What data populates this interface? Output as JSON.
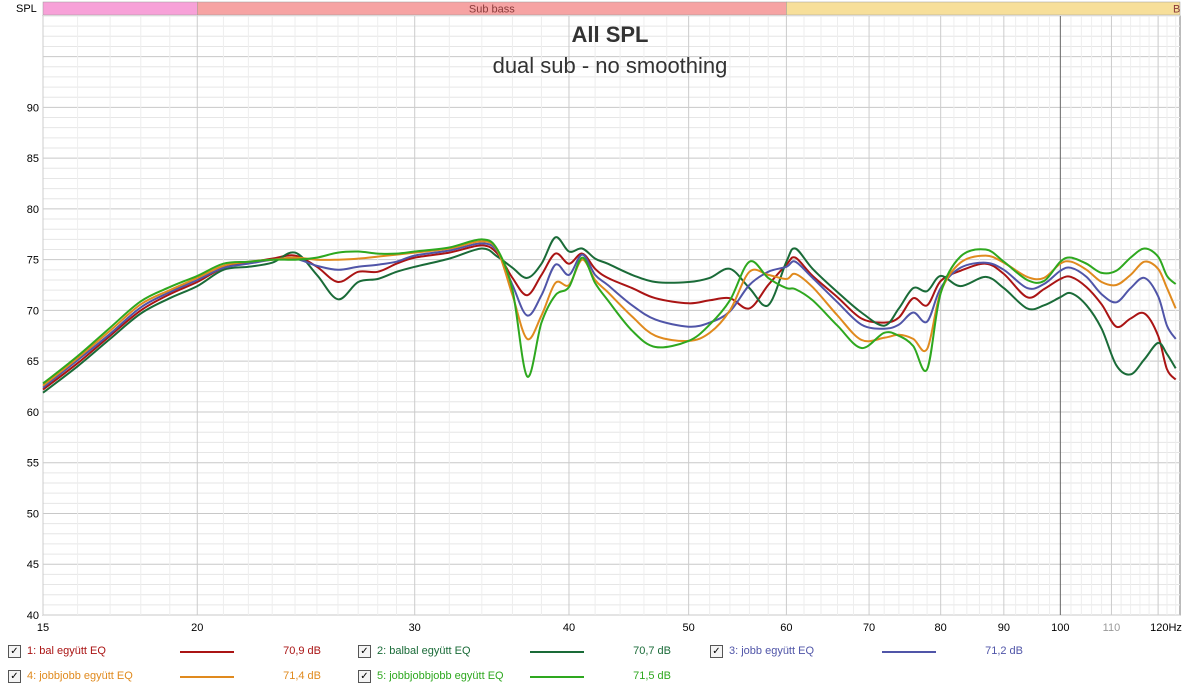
{
  "chart_data": {
    "type": "line",
    "title": "All SPL",
    "subtitle": "dual sub - no smoothing",
    "ylabel": "SPL",
    "x_unit": "Hz",
    "x_scale": "log",
    "xlim": [
      15,
      125
    ],
    "ylim": [
      40,
      99
    ],
    "x_ticks": [
      15,
      20,
      30,
      40,
      50,
      60,
      70,
      80,
      90,
      100,
      110,
      120
    ],
    "x_tick_labels": [
      "15",
      "20",
      "30",
      "40",
      "50",
      "60",
      "70",
      "80",
      "90",
      "100",
      "110",
      "120Hz"
    ],
    "minor_tick_labels": [
      "110"
    ],
    "y_ticks": [
      40,
      45,
      50,
      55,
      60,
      65,
      70,
      75,
      80,
      85,
      90
    ],
    "grid": true,
    "bands": [
      {
        "label": "",
        "from": 15,
        "to": 20,
        "color": "#f7a1d8"
      },
      {
        "label": "Sub bass",
        "from": 20,
        "to": 60,
        "color": "#f6a3a3"
      },
      {
        "label": "B",
        "from": 60,
        "to": 125,
        "color": "#f7df9a"
      }
    ],
    "series": [
      {
        "name": "1: bal együtt EQ",
        "color": "#aa1414",
        "value_label": "70,9 dB",
        "points": [
          [
            15,
            62.2
          ],
          [
            16,
            64.8
          ],
          [
            17,
            67.5
          ],
          [
            18,
            70
          ],
          [
            19,
            71.6
          ],
          [
            20,
            72.8
          ],
          [
            21,
            74.2
          ],
          [
            22,
            74.7
          ],
          [
            23,
            75.1
          ],
          [
            24,
            75.4
          ],
          [
            25,
            74.3
          ],
          [
            26,
            72.8
          ],
          [
            27,
            73.8
          ],
          [
            28,
            73.8
          ],
          [
            29,
            74.6
          ],
          [
            30,
            75.2
          ],
          [
            32,
            75.7
          ],
          [
            34,
            76.4
          ],
          [
            35,
            75.6
          ],
          [
            36,
            73.2
          ],
          [
            37,
            71.5
          ],
          [
            38,
            73.5
          ],
          [
            39,
            75.6
          ],
          [
            40,
            74.6
          ],
          [
            41,
            75.6
          ],
          [
            42,
            74.1
          ],
          [
            43,
            73.2
          ],
          [
            45,
            72.2
          ],
          [
            47,
            71.2
          ],
          [
            50,
            70.7
          ],
          [
            52,
            71
          ],
          [
            54,
            71.2
          ],
          [
            56,
            70.2
          ],
          [
            58,
            72.5
          ],
          [
            60,
            74.5
          ],
          [
            61,
            75.2
          ],
          [
            63,
            73.4
          ],
          [
            66,
            71.3
          ],
          [
            69,
            69.2
          ],
          [
            72,
            68.8
          ],
          [
            74,
            69.3
          ],
          [
            76,
            71.2
          ],
          [
            78,
            70.5
          ],
          [
            80,
            72.9
          ],
          [
            83,
            73.9
          ],
          [
            87,
            74.6
          ],
          [
            90,
            73.6
          ],
          [
            94,
            71.3
          ],
          [
            97,
            72.1
          ],
          [
            100,
            73.1
          ],
          [
            102,
            73.3
          ],
          [
            105,
            72.3
          ],
          [
            108,
            70.6
          ],
          [
            111,
            68.4
          ],
          [
            114,
            69.2
          ],
          [
            117,
            69.7
          ],
          [
            120,
            67.5
          ],
          [
            122,
            64.2
          ],
          [
            124,
            63.2
          ]
        ]
      },
      {
        "name": "2: balbal együtt EQ",
        "color": "#1a6b38",
        "value_label": "70,7 dB",
        "points": [
          [
            15,
            61.9
          ],
          [
            16,
            64.5
          ],
          [
            17,
            67.2
          ],
          [
            18,
            69.7
          ],
          [
            19,
            71.2
          ],
          [
            20,
            72.4
          ],
          [
            21,
            74
          ],
          [
            22,
            74.3
          ],
          [
            23,
            74.7
          ],
          [
            24,
            75.7
          ],
          [
            25,
            73.5
          ],
          [
            26,
            71.1
          ],
          [
            27,
            72.8
          ],
          [
            28,
            73.1
          ],
          [
            29,
            73.8
          ],
          [
            30,
            74.3
          ],
          [
            32,
            75.1
          ],
          [
            34,
            76.1
          ],
          [
            35,
            75.3
          ],
          [
            36,
            74.2
          ],
          [
            37,
            73.2
          ],
          [
            38,
            74.6
          ],
          [
            39,
            77.2
          ],
          [
            40,
            75.8
          ],
          [
            41,
            76.1
          ],
          [
            42,
            75.1
          ],
          [
            43,
            74.6
          ],
          [
            45,
            73.5
          ],
          [
            47,
            72.8
          ],
          [
            50,
            72.8
          ],
          [
            52,
            73.2
          ],
          [
            54,
            74.1
          ],
          [
            56,
            72.2
          ],
          [
            58,
            70.5
          ],
          [
            60,
            74.8
          ],
          [
            61,
            76.1
          ],
          [
            63,
            74.1
          ],
          [
            66,
            71.8
          ],
          [
            69,
            69.8
          ],
          [
            72,
            68.5
          ],
          [
            74,
            70.2
          ],
          [
            76,
            72.2
          ],
          [
            78,
            71.9
          ],
          [
            80,
            73.4
          ],
          [
            83,
            72.4
          ],
          [
            87,
            73.3
          ],
          [
            90,
            72.2
          ],
          [
            94,
            70.2
          ],
          [
            97,
            70.5
          ],
          [
            100,
            71.3
          ],
          [
            102,
            71.7
          ],
          [
            105,
            70.5
          ],
          [
            108,
            68.2
          ],
          [
            111,
            64.6
          ],
          [
            114,
            63.7
          ],
          [
            117,
            65.2
          ],
          [
            120,
            66.8
          ],
          [
            122,
            65.7
          ],
          [
            124,
            64.3
          ]
        ]
      },
      {
        "name": "3: jobb együtt EQ",
        "color": "#5055a8",
        "value_label": "71,2 dB",
        "points": [
          [
            15,
            62.4
          ],
          [
            16,
            65.1
          ],
          [
            17,
            67.7
          ],
          [
            18,
            70.3
          ],
          [
            19,
            71.8
          ],
          [
            20,
            73
          ],
          [
            21,
            74.2
          ],
          [
            22,
            74.6
          ],
          [
            23,
            75
          ],
          [
            24,
            75.1
          ],
          [
            25,
            74.4
          ],
          [
            26,
            74
          ],
          [
            27,
            74.3
          ],
          [
            28,
            74.5
          ],
          [
            29,
            74.8
          ],
          [
            30,
            75.4
          ],
          [
            32,
            75.9
          ],
          [
            34,
            76.6
          ],
          [
            35,
            75.8
          ],
          [
            36,
            72.5
          ],
          [
            37,
            69.5
          ],
          [
            38,
            71.5
          ],
          [
            39,
            74.5
          ],
          [
            40,
            73.5
          ],
          [
            41,
            75.5
          ],
          [
            42,
            73.5
          ],
          [
            43,
            72.5
          ],
          [
            45,
            70.5
          ],
          [
            47,
            69.1
          ],
          [
            50,
            68.4
          ],
          [
            52,
            68.8
          ],
          [
            54,
            69.9
          ],
          [
            56,
            72.5
          ],
          [
            58,
            73.8
          ],
          [
            60,
            74.3
          ],
          [
            61,
            74.8
          ],
          [
            63,
            73.2
          ],
          [
            66,
            70.8
          ],
          [
            69,
            68.6
          ],
          [
            72,
            68.2
          ],
          [
            74,
            68.6
          ],
          [
            76,
            69.8
          ],
          [
            78,
            68.9
          ],
          [
            80,
            72.2
          ],
          [
            83,
            74.2
          ],
          [
            87,
            74.7
          ],
          [
            90,
            74
          ],
          [
            94,
            72.2
          ],
          [
            97,
            72.6
          ],
          [
            100,
            73.9
          ],
          [
            102,
            74.2
          ],
          [
            105,
            73.3
          ],
          [
            108,
            71.6
          ],
          [
            111,
            70.8
          ],
          [
            114,
            72.2
          ],
          [
            117,
            73.2
          ],
          [
            120,
            71.4
          ],
          [
            122,
            68.5
          ],
          [
            124,
            67.2
          ]
        ]
      },
      {
        "name": "4: jobbjobb együtt EQ",
        "color": "#e08a1e",
        "value_label": "71,4 dB",
        "points": [
          [
            15,
            62.6
          ],
          [
            16,
            65.3
          ],
          [
            17,
            68
          ],
          [
            18,
            70.6
          ],
          [
            19,
            72
          ],
          [
            20,
            73.2
          ],
          [
            21,
            74.4
          ],
          [
            22,
            74.8
          ],
          [
            23,
            75
          ],
          [
            24,
            75.2
          ],
          [
            25,
            75
          ],
          [
            26,
            75
          ],
          [
            27,
            75.1
          ],
          [
            28,
            75.3
          ],
          [
            29,
            75.5
          ],
          [
            30,
            75.7
          ],
          [
            32,
            76.1
          ],
          [
            34,
            76.8
          ],
          [
            35,
            75.9
          ],
          [
            36,
            71.5
          ],
          [
            37,
            67.2
          ],
          [
            38,
            69.5
          ],
          [
            39,
            72.7
          ],
          [
            40,
            72.5
          ],
          [
            41,
            75
          ],
          [
            42,
            73
          ],
          [
            43,
            71.8
          ],
          [
            45,
            69.4
          ],
          [
            47,
            67.5
          ],
          [
            50,
            67
          ],
          [
            52,
            67.8
          ],
          [
            54,
            70
          ],
          [
            56,
            73.8
          ],
          [
            58,
            73.5
          ],
          [
            60,
            73.1
          ],
          [
            61,
            73.6
          ],
          [
            63,
            72.3
          ],
          [
            66,
            69.5
          ],
          [
            69,
            67.1
          ],
          [
            72,
            67.3
          ],
          [
            74,
            67.6
          ],
          [
            76,
            67.2
          ],
          [
            78,
            66.2
          ],
          [
            80,
            71.8
          ],
          [
            83,
            74.7
          ],
          [
            87,
            75.4
          ],
          [
            90,
            74.7
          ],
          [
            94,
            73.3
          ],
          [
            97,
            73.2
          ],
          [
            100,
            74.6
          ],
          [
            102,
            74.8
          ],
          [
            105,
            74
          ],
          [
            108,
            72.8
          ],
          [
            111,
            72.5
          ],
          [
            114,
            73.5
          ],
          [
            117,
            74.8
          ],
          [
            120,
            74.1
          ],
          [
            122,
            72.2
          ],
          [
            124,
            70.2
          ]
        ]
      },
      {
        "name": "5: jobbjobbjobb együtt EQ",
        "color": "#2ea81f",
        "value_label": "71,5 dB",
        "points": [
          [
            15,
            62.8
          ],
          [
            16,
            65.5
          ],
          [
            17,
            68.3
          ],
          [
            18,
            70.9
          ],
          [
            19,
            72.3
          ],
          [
            20,
            73.4
          ],
          [
            21,
            74.6
          ],
          [
            22,
            74.8
          ],
          [
            23,
            75
          ],
          [
            24,
            75
          ],
          [
            25,
            75.2
          ],
          [
            26,
            75.7
          ],
          [
            27,
            75.8
          ],
          [
            28,
            75.6
          ],
          [
            29,
            75.6
          ],
          [
            30,
            75.8
          ],
          [
            32,
            76.2
          ],
          [
            34,
            77
          ],
          [
            35,
            76
          ],
          [
            36,
            72
          ],
          [
            37,
            63.5
          ],
          [
            38,
            68.8
          ],
          [
            39,
            71.5
          ],
          [
            40,
            72.3
          ],
          [
            41,
            75.2
          ],
          [
            42,
            72.7
          ],
          [
            43,
            71
          ],
          [
            45,
            68
          ],
          [
            47,
            66.4
          ],
          [
            50,
            67
          ],
          [
            52,
            68.6
          ],
          [
            54,
            71
          ],
          [
            56,
            74.8
          ],
          [
            58,
            73.2
          ],
          [
            60,
            72.2
          ],
          [
            61,
            72.1
          ],
          [
            63,
            71
          ],
          [
            66,
            68.5
          ],
          [
            69,
            66.3
          ],
          [
            72,
            67.8
          ],
          [
            74,
            67.5
          ],
          [
            76,
            66.5
          ],
          [
            78,
            64.2
          ],
          [
            80,
            71.7
          ],
          [
            83,
            75.3
          ],
          [
            87,
            76
          ],
          [
            90,
            74.8
          ],
          [
            94,
            73
          ],
          [
            97,
            72.9
          ],
          [
            100,
            74.8
          ],
          [
            102,
            75.2
          ],
          [
            105,
            74.6
          ],
          [
            108,
            73.7
          ],
          [
            111,
            73.9
          ],
          [
            114,
            75.2
          ],
          [
            117,
            76.1
          ],
          [
            120,
            75.3
          ],
          [
            122,
            73.4
          ],
          [
            124,
            72.6
          ]
        ]
      }
    ]
  },
  "legend": {
    "check_glyph": "✓"
  }
}
